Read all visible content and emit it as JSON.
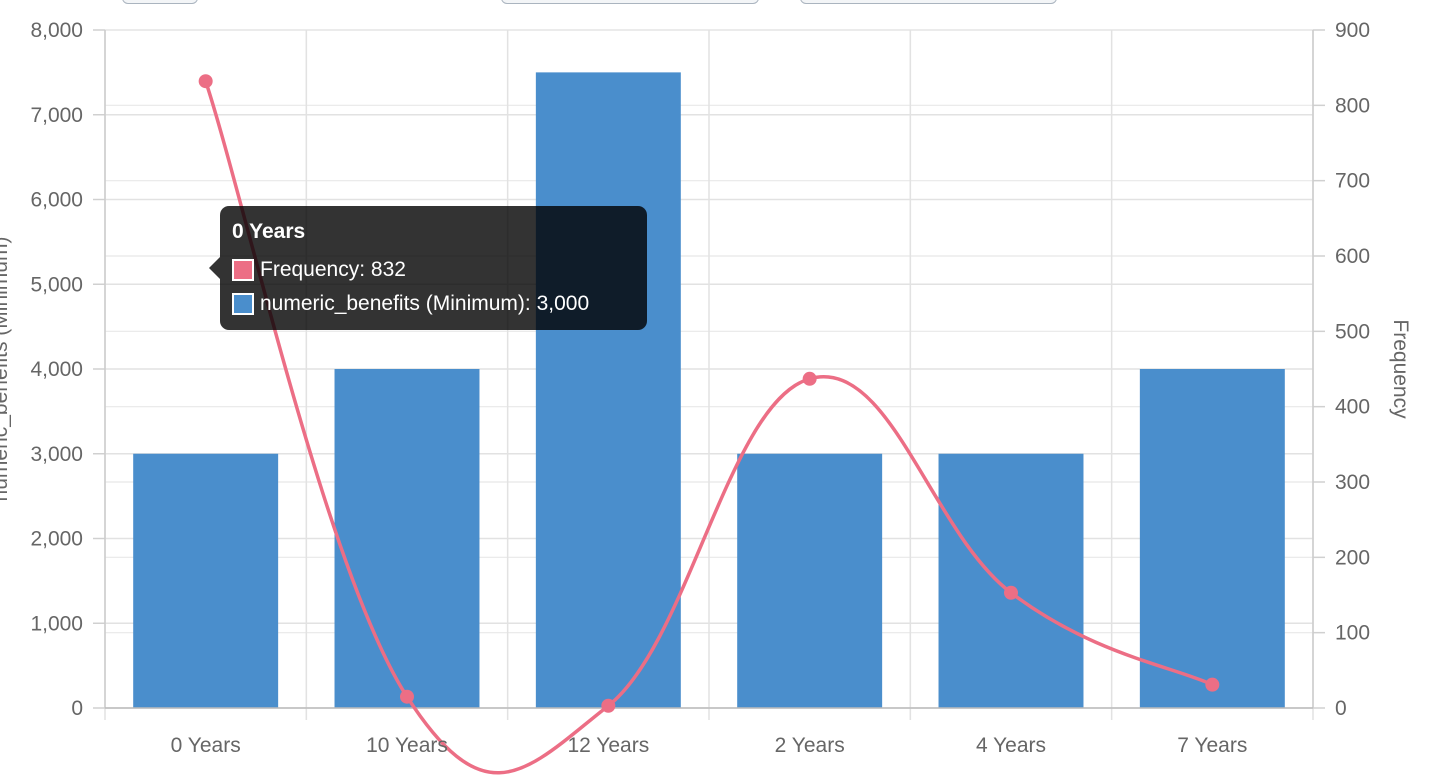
{
  "chart_data": {
    "type": "bar",
    "categories": [
      "0 Years",
      "10 Years",
      "12 Years",
      "2 Years",
      "4 Years",
      "7 Years"
    ],
    "series": [
      {
        "name": "numeric_benefits (Minimum)",
        "type": "bar",
        "axis": "left",
        "color": "#4a8ecc",
        "values": [
          3000,
          4000,
          7500,
          3000,
          3000,
          4000
        ]
      },
      {
        "name": "Frequency",
        "type": "line",
        "axis": "right",
        "color": "#ec6e85",
        "values": [
          832,
          15,
          3,
          437,
          153,
          31
        ]
      }
    ],
    "y_left": {
      "label": "numeric_benefits (Minimum)",
      "ylim": [
        0,
        8000
      ],
      "ticks": [
        "0",
        "1,000",
        "2,000",
        "3,000",
        "4,000",
        "5,000",
        "6,000",
        "7,000",
        "8,000"
      ]
    },
    "y_right": {
      "label": "Frequency",
      "ylim": [
        0,
        900
      ],
      "ticks": [
        "0",
        "100",
        "200",
        "300",
        "400",
        "500",
        "600",
        "700",
        "800",
        "900"
      ]
    },
    "grid": true,
    "tooltip": {
      "title": "0 Years",
      "rows": [
        {
          "label": "Frequency: 832",
          "color": "#ec6e85"
        },
        {
          "label": "numeric_benefits (Minimum): 3,000",
          "color": "#4a8ecc"
        }
      ]
    }
  }
}
